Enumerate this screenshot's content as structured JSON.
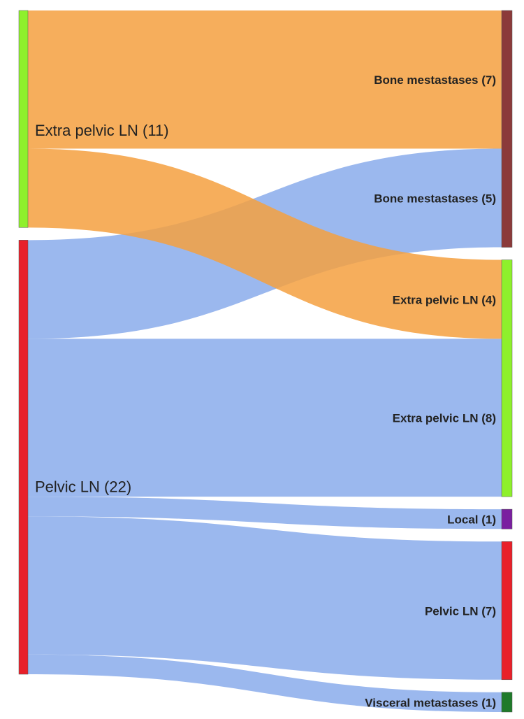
{
  "chart_data": {
    "type": "sankey",
    "sources": [
      {
        "label": "Extra pelvic LN (11)",
        "value": 11,
        "color": "#8ef02c",
        "link_color": "#f5a040"
      },
      {
        "label": "Pelvic LN (22)",
        "value": 22,
        "color": "#e8202a",
        "link_color": "#89aceb"
      }
    ],
    "targets": [
      {
        "color": "#8b3a3a"
      },
      {
        "color": "#8ef02c"
      },
      {
        "color": "#7a1fa0"
      },
      {
        "color": "#e8202a"
      },
      {
        "color": "#1f7a2a"
      }
    ],
    "links": [
      {
        "source": 0,
        "target": 0,
        "value": 7,
        "label": "Bone mestastases (7)"
      },
      {
        "source": 0,
        "target": 1,
        "value": 4,
        "label": "Extra pelvic LN (4)"
      },
      {
        "source": 1,
        "target": 0,
        "value": 5,
        "label": "Bone mestastases (5)"
      },
      {
        "source": 1,
        "target": 1,
        "value": 8,
        "label": "Extra pelvic LN (8)"
      },
      {
        "source": 1,
        "target": 2,
        "value": 1,
        "label": "Local (1)"
      },
      {
        "source": 1,
        "target": 3,
        "value": 7,
        "label": "Pelvic LN (7)"
      },
      {
        "source": 1,
        "target": 4,
        "value": 1,
        "label": "Visceral metastases (1)"
      }
    ]
  }
}
